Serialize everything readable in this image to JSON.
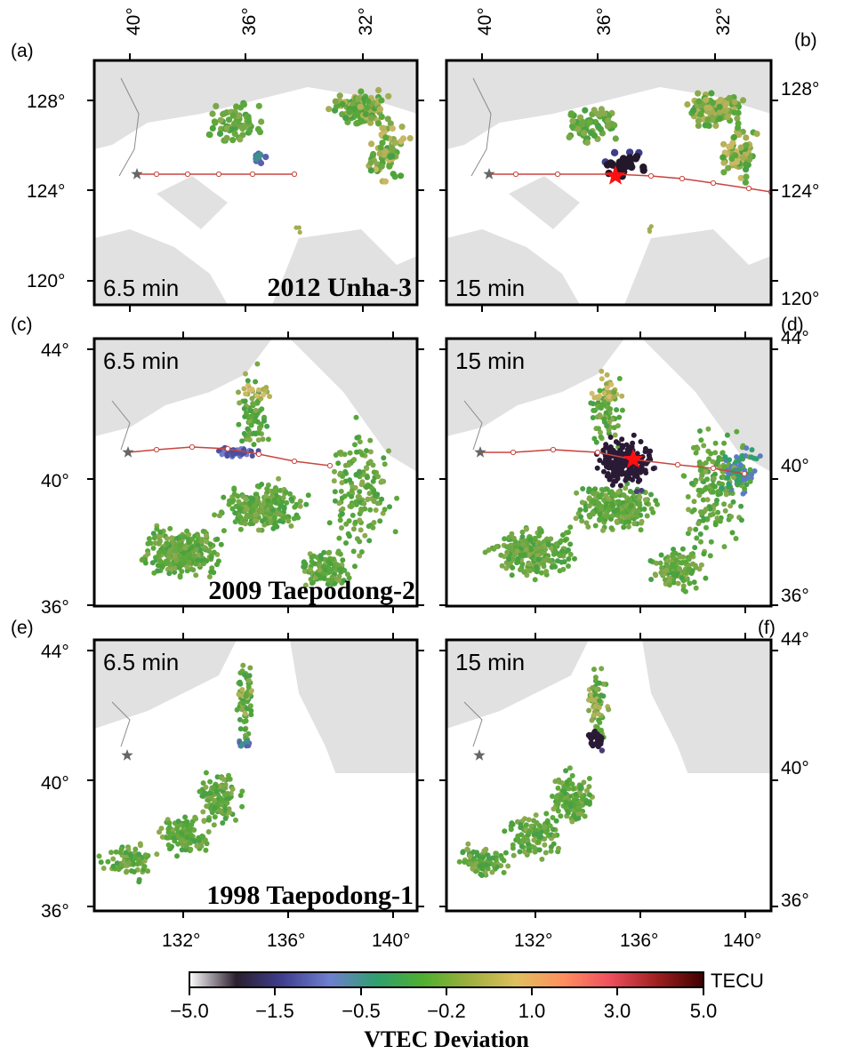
{
  "panels": [
    {
      "id": "a",
      "label": "(a)",
      "time": "6.5 min",
      "event": "2012 Unha-3",
      "anomaly": 0
    },
    {
      "id": "b",
      "label": "(b)",
      "time": "15 min",
      "event": "",
      "anomaly": 1
    },
    {
      "id": "c",
      "label": "(c)",
      "time": "6.5 min",
      "event": "2009 Taepodong-2",
      "anomaly": 0
    },
    {
      "id": "d",
      "label": "(d)",
      "time": "15 min",
      "event": "",
      "anomaly": 1
    },
    {
      "id": "e",
      "label": "(e)",
      "time": "6.5 min",
      "event": "1998 Taepodong-1",
      "anomaly": 0
    },
    {
      "id": "f",
      "label": "(f)",
      "time": "15 min",
      "event": "",
      "anomaly": 1
    }
  ],
  "axes": {
    "top_lon_ticks": [
      "40°",
      "36°",
      "32°"
    ],
    "row1_lat_ticks": [
      "128°",
      "124°",
      "120°"
    ],
    "row2_lat_ticks": [
      "44°",
      "40°",
      "36°"
    ],
    "row3_lat_ticks": [
      "44°",
      "40°",
      "36°"
    ],
    "bottom_lon_ticks": [
      "132°",
      "136°",
      "140°"
    ]
  },
  "colorbar": {
    "title": "VTEC Deviation",
    "unit": "TECU",
    "ticks": [
      "−5.0",
      "−1.5",
      "−0.5",
      "−0.2",
      "1.0",
      "3.0",
      "5.0"
    ],
    "colors": [
      "#ffffff",
      "#2b1e2f",
      "#3f3f8f",
      "#6f7fcf",
      "#2f9f6f",
      "#4faf2f",
      "#9faf3f",
      "#dfbf5f",
      "#ff8f5f",
      "#ef4f5f",
      "#9f1f1f",
      "#3f0000"
    ]
  },
  "colors": {
    "land": "#e1e1e1",
    "border": "#8a8a8a",
    "dot_green": "#4ea23a",
    "track": "#c8463f",
    "launch_star": "#666666",
    "impact_star": "#ff1010"
  },
  "icons": {
    "launch": "star-icon",
    "impact": "star-icon"
  }
}
